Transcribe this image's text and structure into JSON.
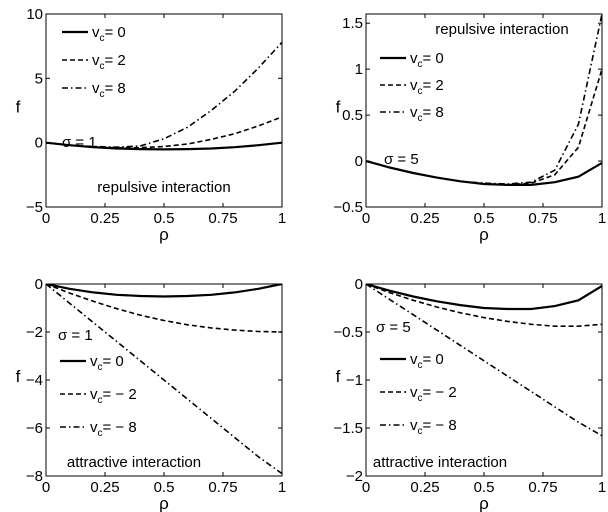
{
  "chart_data": [
    {
      "type": "line",
      "xlabel": "ρ",
      "ylabel": "f",
      "xlim": [
        0,
        1
      ],
      "ylim": [
        -5,
        10
      ],
      "xticks": [
        0,
        0.25,
        0.5,
        0.75,
        1
      ],
      "xtick_labels": [
        "0",
        "0.25",
        "0.5",
        "0.75",
        "1"
      ],
      "yticks": [
        -5,
        0,
        5,
        10
      ],
      "ytick_labels": [
        "−5",
        "0",
        "5",
        "10"
      ],
      "legend_position": "top-left",
      "annotations": [
        "σ = 1",
        "repulsive interaction"
      ],
      "x": [
        0,
        0.1,
        0.2,
        0.3,
        0.4,
        0.5,
        0.6,
        0.7,
        0.8,
        0.9,
        1.0
      ],
      "series": [
        {
          "name": "v_c= 0",
          "style": "solid",
          "values": [
            0,
            -0.2,
            -0.35,
            -0.45,
            -0.5,
            -0.52,
            -0.5,
            -0.45,
            -0.35,
            -0.2,
            0
          ]
        },
        {
          "name": "v_c= 2",
          "style": "dashed",
          "values": [
            0,
            -0.2,
            -0.33,
            -0.4,
            -0.38,
            -0.3,
            -0.1,
            0.25,
            0.7,
            1.3,
            2.0
          ]
        },
        {
          "name": "v_c= 8",
          "style": "dashdot",
          "values": [
            0,
            -0.2,
            -0.3,
            -0.35,
            -0.25,
            0.3,
            1.2,
            2.5,
            4.0,
            5.8,
            7.8
          ]
        }
      ]
    },
    {
      "type": "line",
      "xlabel": "ρ",
      "ylabel": "f",
      "xlim": [
        0,
        1
      ],
      "ylim": [
        -0.5,
        1.6
      ],
      "xticks": [
        0,
        0.25,
        0.5,
        0.75,
        1
      ],
      "xtick_labels": [
        "0",
        "0.25",
        "0.5",
        "0.75",
        "1"
      ],
      "yticks": [
        -0.5,
        0,
        0.5,
        1,
        1.5
      ],
      "ytick_labels": [
        "−0.5",
        "0",
        "0.5",
        "1",
        "1.5"
      ],
      "legend_position": "top-left",
      "annotations": [
        "repulsive interaction",
        "σ = 5"
      ],
      "x": [
        0,
        0.1,
        0.2,
        0.3,
        0.4,
        0.5,
        0.6,
        0.7,
        0.8,
        0.9,
        1.0
      ],
      "series": [
        {
          "name": "v_c= 0",
          "style": "solid",
          "values": [
            0,
            -0.07,
            -0.13,
            -0.18,
            -0.22,
            -0.25,
            -0.26,
            -0.26,
            -0.23,
            -0.17,
            -0.02
          ]
        },
        {
          "name": "v_c= 2",
          "style": "dashed",
          "values": [
            0,
            -0.07,
            -0.13,
            -0.18,
            -0.22,
            -0.25,
            -0.26,
            -0.24,
            -0.15,
            0.15,
            1.0
          ]
        },
        {
          "name": "v_c= 8",
          "style": "dashdot",
          "values": [
            0,
            -0.07,
            -0.13,
            -0.18,
            -0.22,
            -0.24,
            -0.25,
            -0.23,
            -0.1,
            0.4,
            1.6
          ]
        }
      ]
    },
    {
      "type": "line",
      "xlabel": "ρ",
      "ylabel": "f",
      "xlim": [
        0,
        1
      ],
      "ylim": [
        -8,
        0
      ],
      "xticks": [
        0,
        0.25,
        0.5,
        0.75,
        1
      ],
      "xtick_labels": [
        "0",
        "0.25",
        "0.5",
        "0.75",
        "1"
      ],
      "yticks": [
        -8,
        -6,
        -4,
        -2,
        0
      ],
      "ytick_labels": [
        "−8",
        "−6",
        "−4",
        "−2",
        "0"
      ],
      "legend_position": "left",
      "annotations": [
        "σ = 1",
        "attractive interaction"
      ],
      "x": [
        0,
        0.1,
        0.2,
        0.3,
        0.4,
        0.5,
        0.6,
        0.7,
        0.8,
        0.9,
        1.0
      ],
      "series": [
        {
          "name": "v_c= 0",
          "style": "solid",
          "values": [
            0,
            -0.2,
            -0.35,
            -0.45,
            -0.5,
            -0.52,
            -0.5,
            -0.45,
            -0.35,
            -0.2,
            0
          ]
        },
        {
          "name": "v_c= − 2",
          "style": "dashed",
          "values": [
            0,
            -0.38,
            -0.72,
            -1.03,
            -1.3,
            -1.52,
            -1.7,
            -1.83,
            -1.92,
            -1.98,
            -2.0
          ]
        },
        {
          "name": "v_c= − 8",
          "style": "dashdot",
          "values": [
            0,
            -0.8,
            -1.6,
            -2.4,
            -3.2,
            -4.0,
            -4.8,
            -5.6,
            -6.4,
            -7.2,
            -7.9
          ]
        }
      ]
    },
    {
      "type": "line",
      "xlabel": "ρ",
      "ylabel": "f",
      "xlim": [
        0,
        1
      ],
      "ylim": [
        -2,
        0
      ],
      "xticks": [
        0,
        0.25,
        0.5,
        0.75,
        1
      ],
      "xtick_labels": [
        "0",
        "0.25",
        "0.5",
        "0.75",
        "1"
      ],
      "yticks": [
        -2,
        -1.5,
        -1,
        -0.5,
        0
      ],
      "ytick_labels": [
        "−2",
        "−1.5",
        "−1",
        "−0.5",
        "0"
      ],
      "legend_position": "left",
      "annotations": [
        "σ = 5",
        "attractive interaction"
      ],
      "x": [
        0,
        0.1,
        0.2,
        0.3,
        0.4,
        0.5,
        0.6,
        0.7,
        0.8,
        0.9,
        1.0
      ],
      "series": [
        {
          "name": "v_c= 0",
          "style": "solid",
          "values": [
            0,
            -0.07,
            -0.13,
            -0.18,
            -0.22,
            -0.25,
            -0.26,
            -0.26,
            -0.23,
            -0.17,
            -0.02
          ]
        },
        {
          "name": "v_c= − 2",
          "style": "dashed",
          "values": [
            0,
            -0.09,
            -0.17,
            -0.24,
            -0.3,
            -0.35,
            -0.39,
            -0.42,
            -0.44,
            -0.44,
            -0.42
          ]
        },
        {
          "name": "v_c= − 8",
          "style": "dashdot",
          "values": [
            0,
            -0.16,
            -0.32,
            -0.48,
            -0.64,
            -0.8,
            -0.96,
            -1.12,
            -1.28,
            -1.44,
            -1.58
          ]
        }
      ]
    }
  ]
}
